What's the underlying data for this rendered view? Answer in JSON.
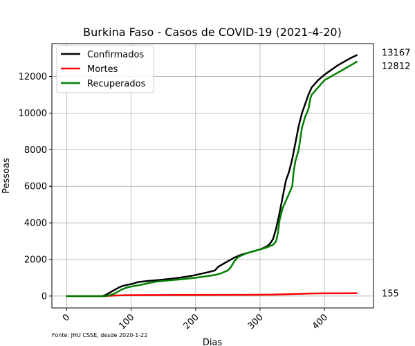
{
  "chart_data": {
    "type": "line",
    "title": "Burkina Faso - Casos de COVID-19 (2021-4-20)",
    "xlabel": "Dias",
    "ylabel": "Pessoas",
    "xlim": [
      -23,
      476
    ],
    "ylim": [
      -650,
      13800
    ],
    "xticks": [
      0,
      100,
      200,
      300,
      400
    ],
    "yticks": [
      0,
      2000,
      4000,
      6000,
      8000,
      10000,
      12000
    ],
    "grid": true,
    "legend_position": "top-left",
    "source": "Fonte: JHU CSSE, desde 2020-1-22",
    "series": [
      {
        "name": "Confirmados",
        "color": "#000000",
        "end_label": "13167",
        "points": [
          [
            0,
            0
          ],
          [
            55,
            0
          ],
          [
            60,
            50
          ],
          [
            65,
            150
          ],
          [
            70,
            250
          ],
          [
            75,
            350
          ],
          [
            80,
            450
          ],
          [
            85,
            530
          ],
          [
            90,
            580
          ],
          [
            95,
            620
          ],
          [
            100,
            650
          ],
          [
            105,
            700
          ],
          [
            110,
            760
          ],
          [
            120,
            800
          ],
          [
            130,
            840
          ],
          [
            140,
            870
          ],
          [
            150,
            900
          ],
          [
            160,
            940
          ],
          [
            170,
            980
          ],
          [
            180,
            1030
          ],
          [
            190,
            1080
          ],
          [
            200,
            1150
          ],
          [
            210,
            1230
          ],
          [
            220,
            1310
          ],
          [
            230,
            1400
          ],
          [
            235,
            1600
          ],
          [
            240,
            1700
          ],
          [
            250,
            1900
          ],
          [
            260,
            2100
          ],
          [
            270,
            2250
          ],
          [
            280,
            2350
          ],
          [
            290,
            2450
          ],
          [
            300,
            2550
          ],
          [
            310,
            2700
          ],
          [
            315,
            2850
          ],
          [
            320,
            3100
          ],
          [
            325,
            3700
          ],
          [
            330,
            4500
          ],
          [
            335,
            5400
          ],
          [
            340,
            6300
          ],
          [
            345,
            6800
          ],
          [
            350,
            7500
          ],
          [
            355,
            8400
          ],
          [
            360,
            9300
          ],
          [
            365,
            10000
          ],
          [
            370,
            10500
          ],
          [
            375,
            11000
          ],
          [
            380,
            11400
          ],
          [
            390,
            11800
          ],
          [
            400,
            12100
          ],
          [
            410,
            12350
          ],
          [
            420,
            12600
          ],
          [
            430,
            12800
          ],
          [
            440,
            13000
          ],
          [
            450,
            13167
          ]
        ]
      },
      {
        "name": "Mortes",
        "color": "#ff0000",
        "end_label": "155",
        "points": [
          [
            0,
            0
          ],
          [
            60,
            0
          ],
          [
            70,
            20
          ],
          [
            80,
            35
          ],
          [
            100,
            50
          ],
          [
            150,
            55
          ],
          [
            200,
            60
          ],
          [
            250,
            65
          ],
          [
            300,
            70
          ],
          [
            320,
            80
          ],
          [
            340,
            95
          ],
          [
            360,
            120
          ],
          [
            380,
            140
          ],
          [
            400,
            148
          ],
          [
            420,
            150
          ],
          [
            450,
            155
          ]
        ]
      },
      {
        "name": "Recuperados",
        "color": "#008000",
        "end_label": "12812",
        "points": [
          [
            0,
            0
          ],
          [
            60,
            0
          ],
          [
            65,
            30
          ],
          [
            70,
            80
          ],
          [
            75,
            150
          ],
          [
            80,
            250
          ],
          [
            85,
            350
          ],
          [
            90,
            420
          ],
          [
            95,
            480
          ],
          [
            100,
            520
          ],
          [
            110,
            580
          ],
          [
            120,
            650
          ],
          [
            130,
            730
          ],
          [
            140,
            790
          ],
          [
            150,
            830
          ],
          [
            160,
            860
          ],
          [
            170,
            890
          ],
          [
            180,
            920
          ],
          [
            190,
            960
          ],
          [
            200,
            1000
          ],
          [
            210,
            1050
          ],
          [
            220,
            1100
          ],
          [
            230,
            1150
          ],
          [
            240,
            1250
          ],
          [
            250,
            1400
          ],
          [
            255,
            1600
          ],
          [
            260,
            1900
          ],
          [
            265,
            2100
          ],
          [
            270,
            2200
          ],
          [
            280,
            2350
          ],
          [
            290,
            2450
          ],
          [
            300,
            2550
          ],
          [
            310,
            2650
          ],
          [
            320,
            2800
          ],
          [
            325,
            3000
          ],
          [
            328,
            3500
          ],
          [
            330,
            4100
          ],
          [
            335,
            4800
          ],
          [
            340,
            5200
          ],
          [
            345,
            5600
          ],
          [
            350,
            6000
          ],
          [
            352,
            6800
          ],
          [
            355,
            7400
          ],
          [
            360,
            8000
          ],
          [
            365,
            9200
          ],
          [
            370,
            9800
          ],
          [
            375,
            10200
          ],
          [
            378,
            10800
          ],
          [
            380,
            11000
          ],
          [
            390,
            11400
          ],
          [
            400,
            11800
          ],
          [
            410,
            12000
          ],
          [
            420,
            12200
          ],
          [
            430,
            12400
          ],
          [
            440,
            12600
          ],
          [
            450,
            12812
          ]
        ]
      }
    ]
  }
}
